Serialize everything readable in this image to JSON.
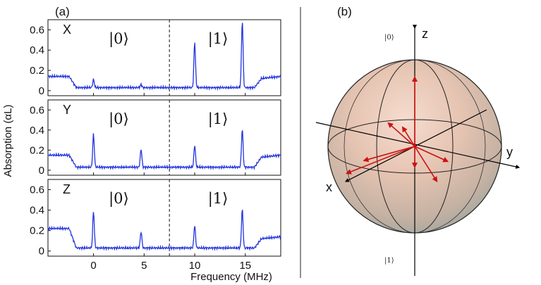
{
  "panel_a_label": "(a)",
  "panel_b_label": "(b)",
  "chart_data": [
    {
      "type": "line",
      "subplot": "X",
      "xlabel": "Frequency (MHz)",
      "ylabel": "Absorption (αL)",
      "xlim": [
        -4.5,
        18.5
      ],
      "ylim": [
        -0.05,
        0.7
      ],
      "yticks": [
        "0",
        "0.2",
        "0.4",
        "0.6"
      ],
      "xticks": [
        "0",
        "5",
        "10",
        "15"
      ],
      "divider_x": 7.5,
      "state_labels": [
        "|0⟩",
        "|1⟩"
      ],
      "baseline": {
        "x": [
          -4.5,
          -2.4,
          -1.7,
          18.5
        ],
        "y": [
          0.14,
          0.14,
          0.03,
          0.03
        ]
      },
      "tail": {
        "x": [
          15.9,
          16.6,
          18.5
        ],
        "y": [
          0.03,
          0.12,
          0.14
        ]
      },
      "peaks": [
        {
          "x": 0.0,
          "height": 0.08
        },
        {
          "x": 4.7,
          "height": 0.03
        },
        {
          "x": 10.0,
          "height": 0.45
        },
        {
          "x": 14.7,
          "height": 0.66
        }
      ]
    },
    {
      "type": "line",
      "subplot": "Y",
      "xlim": [
        -4.5,
        18.5
      ],
      "ylim": [
        -0.05,
        0.7
      ],
      "yticks": [
        "0",
        "0.2",
        "0.4",
        "0.6"
      ],
      "divider_x": 7.5,
      "state_labels": [
        "|0⟩",
        "|1⟩"
      ],
      "baseline": {
        "x": [
          -4.5,
          -2.4,
          -1.7,
          18.5
        ],
        "y": [
          0.15,
          0.15,
          0.03,
          0.03
        ]
      },
      "tail": {
        "x": [
          15.9,
          16.6,
          18.5
        ],
        "y": [
          0.03,
          0.13,
          0.15
        ]
      },
      "peaks": [
        {
          "x": 0.0,
          "height": 0.33
        },
        {
          "x": 4.7,
          "height": 0.18
        },
        {
          "x": 10.0,
          "height": 0.22
        },
        {
          "x": 14.7,
          "height": 0.38
        }
      ]
    },
    {
      "type": "line",
      "subplot": "Z",
      "xlim": [
        -4.5,
        18.5
      ],
      "ylim": [
        -0.05,
        0.7
      ],
      "yticks": [
        "0",
        "0.2",
        "0.4",
        "0.6"
      ],
      "divider_x": 7.5,
      "state_labels": [
        "|0⟩",
        "|1⟩"
      ],
      "baseline": {
        "x": [
          -4.5,
          -2.4,
          -1.7,
          18.5
        ],
        "y": [
          0.22,
          0.22,
          0.03,
          0.03
        ]
      },
      "tail": {
        "x": [
          15.9,
          16.6,
          18.5
        ],
        "y": [
          0.03,
          0.12,
          0.14
        ]
      },
      "peaks": [
        {
          "x": 0.0,
          "height": 0.36
        },
        {
          "x": 4.7,
          "height": 0.16
        },
        {
          "x": 10.0,
          "height": 0.22
        },
        {
          "x": 14.7,
          "height": 0.38
        }
      ]
    },
    {
      "type": "bloch-sphere",
      "axes": [
        "x",
        "y",
        "z"
      ],
      "pole_labels": {
        "top": "|0⟩",
        "bottom": "|1⟩"
      },
      "vectors": [
        [
          0.0,
          0.0,
          1.0
        ],
        [
          0.0,
          0.0,
          -0.3
        ],
        [
          -0.2,
          -0.55,
          0.2
        ],
        [
          0.7,
          0.2,
          0.5
        ],
        [
          0.5,
          -0.55,
          -0.15
        ],
        [
          0.1,
          0.6,
          -0.1
        ],
        [
          0.3,
          -0.95,
          -0.45
        ],
        [
          -0.55,
          0.05,
          -0.65
        ]
      ]
    }
  ]
}
